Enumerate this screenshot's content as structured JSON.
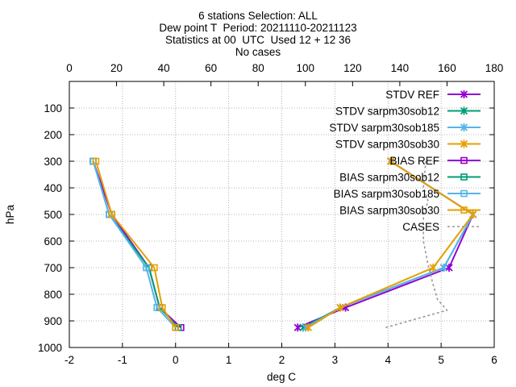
{
  "chart_data": {
    "type": "line",
    "title_lines": [
      "6 stations Selection: ALL",
      "Dew point T  Period: 20211110-20211123",
      "Statistics at 00  UTC  Used 12 + 12 36",
      "No cases"
    ],
    "xlabel": "deg C",
    "ylabel": "hPa",
    "xlim": [
      -2,
      6
    ],
    "ylim": [
      1000,
      0
    ],
    "x2lim": [
      0,
      180
    ],
    "x_ticks": [
      "-2",
      "-1",
      "0",
      "1",
      "2",
      "3",
      "4",
      "5",
      "6"
    ],
    "y_ticks": [
      "100",
      "200",
      "300",
      "400",
      "500",
      "600",
      "700",
      "800",
      "900",
      "1000"
    ],
    "x2_ticks": [
      "0",
      "20",
      "40",
      "60",
      "80",
      "100",
      "120",
      "140",
      "160",
      "180"
    ],
    "grid": true,
    "legend_position": "top-right",
    "series": [
      {
        "name": "STDV REF",
        "color": "#9400d3",
        "marker": "x",
        "dash": false,
        "axis": "bottom",
        "points": [
          [
            2.3,
            925
          ],
          [
            3.2,
            850
          ],
          [
            5.15,
            700
          ],
          [
            5.6,
            500
          ],
          [
            4.05,
            300
          ]
        ]
      },
      {
        "name": "STDV sarpm30sob12",
        "color": "#009e73",
        "marker": "x",
        "dash": false,
        "axis": "bottom",
        "points": [
          [
            2.4,
            925
          ],
          [
            3.1,
            850
          ],
          [
            5.05,
            700
          ],
          [
            5.6,
            500
          ],
          [
            4.05,
            300
          ]
        ]
      },
      {
        "name": "STDV sarpm30sob185",
        "color": "#56b4e9",
        "marker": "x",
        "dash": false,
        "axis": "bottom",
        "points": [
          [
            2.45,
            925
          ],
          [
            3.1,
            850
          ],
          [
            5.05,
            700
          ],
          [
            5.6,
            500
          ],
          [
            4.05,
            300
          ]
        ]
      },
      {
        "name": "STDV sarpm30sob30",
        "color": "#e69f00",
        "marker": "x",
        "dash": false,
        "axis": "bottom",
        "points": [
          [
            2.5,
            925
          ],
          [
            3.1,
            850
          ],
          [
            4.85,
            700
          ],
          [
            5.6,
            500
          ],
          [
            4.05,
            300
          ]
        ]
      },
      {
        "name": "BIAS REF",
        "color": "#9400d3",
        "marker": "square",
        "dash": false,
        "axis": "bottom",
        "points": [
          [
            0.1,
            925
          ],
          [
            -0.3,
            850
          ],
          [
            -0.5,
            700
          ],
          [
            -1.2,
            500
          ],
          [
            -1.55,
            300
          ]
        ]
      },
      {
        "name": "BIAS sarpm30sob12",
        "color": "#009e73",
        "marker": "square",
        "dash": false,
        "axis": "bottom",
        "points": [
          [
            0.05,
            925
          ],
          [
            -0.3,
            850
          ],
          [
            -0.5,
            700
          ],
          [
            -1.25,
            500
          ],
          [
            -1.55,
            300
          ]
        ]
      },
      {
        "name": "BIAS sarpm30sob185",
        "color": "#56b4e9",
        "marker": "square",
        "dash": false,
        "axis": "bottom",
        "points": [
          [
            0.0,
            925
          ],
          [
            -0.35,
            850
          ],
          [
            -0.55,
            700
          ],
          [
            -1.25,
            500
          ],
          [
            -1.55,
            300
          ]
        ]
      },
      {
        "name": "BIAS sarpm30sob30",
        "color": "#e69f00",
        "marker": "square",
        "dash": false,
        "axis": "bottom",
        "points": [
          [
            0.0,
            925
          ],
          [
            -0.25,
            850
          ],
          [
            -0.4,
            700
          ],
          [
            -1.2,
            500
          ],
          [
            -1.5,
            300
          ]
        ]
      },
      {
        "name": "CASES",
        "color": "#999999",
        "marker": "none",
        "dash": true,
        "axis": "top",
        "points": [
          [
            134,
            925
          ],
          [
            144,
            900
          ],
          [
            160,
            860
          ],
          [
            156,
            820
          ],
          [
            154,
            760
          ],
          [
            152,
            690
          ],
          [
            150,
            600
          ],
          [
            150,
            500
          ],
          [
            152,
            450
          ],
          [
            150,
            400
          ],
          [
            151,
            300
          ]
        ]
      }
    ]
  }
}
